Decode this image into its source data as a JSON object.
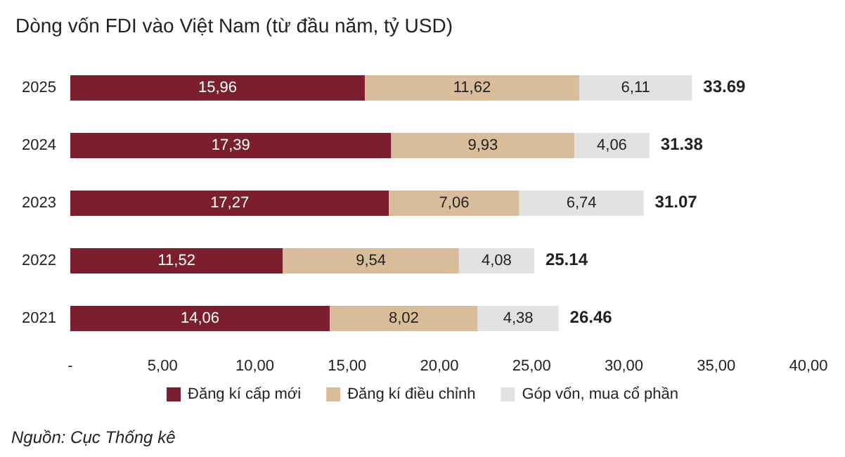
{
  "chart_data": {
    "type": "bar",
    "orientation": "horizontal",
    "stacked": true,
    "title": "Dòng vốn FDI vào Việt Nam (từ đầu năm, tỷ USD)",
    "categories": [
      "2025",
      "2024",
      "2023",
      "2022",
      "2021"
    ],
    "series": [
      {
        "name": "Đăng kí cấp mới",
        "color": "#7b1f2e",
        "values": [
          15.96,
          17.39,
          17.27,
          11.52,
          14.06
        ],
        "value_labels": [
          "15,96",
          "17,39",
          "17,27",
          "11,52",
          "14,06"
        ]
      },
      {
        "name": "Đăng kí điều chỉnh",
        "color": "#d9bc9a",
        "values": [
          11.62,
          9.93,
          7.06,
          9.54,
          8.02
        ],
        "value_labels": [
          "11,62",
          "9,93",
          "7,06",
          "9,54",
          "8,02"
        ]
      },
      {
        "name": "Góp vốn, mua cổ phần",
        "color": "#e2e2e2",
        "values": [
          6.11,
          4.06,
          6.74,
          4.08,
          4.38
        ],
        "value_labels": [
          "6,11",
          "4,06",
          "6,74",
          "4,08",
          "4,38"
        ]
      }
    ],
    "totals": [
      "33.69",
      "31.38",
      "31.07",
      "25.14",
      "26.46"
    ],
    "xlim": [
      0,
      40
    ],
    "xticks": [
      {
        "value": 0,
        "label": "-"
      },
      {
        "value": 5,
        "label": "5,00"
      },
      {
        "value": 10,
        "label": "10,00"
      },
      {
        "value": 15,
        "label": "15,00"
      },
      {
        "value": 20,
        "label": "20,00"
      },
      {
        "value": 25,
        "label": "25,00"
      },
      {
        "value": 30,
        "label": "30,00"
      },
      {
        "value": 35,
        "label": "35,00"
      },
      {
        "value": 40,
        "label": "40,00"
      }
    ],
    "grid": false,
    "legend": "bottom",
    "annotations": [
      "Nguồn: Cục Thống kê"
    ]
  }
}
